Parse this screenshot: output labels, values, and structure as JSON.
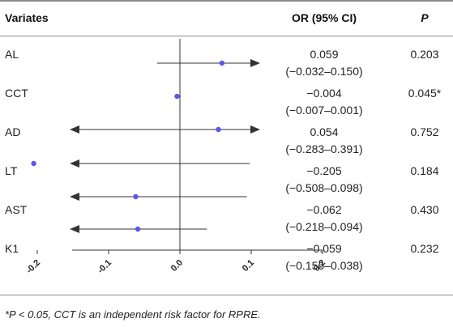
{
  "table": {
    "col_variates": "Variates",
    "col_or": "OR (95% CI)",
    "col_p": "P",
    "rows": [
      {
        "name": "AL",
        "or": "0.059",
        "ci": "(−0.032–0.150)",
        "p": "0.203"
      },
      {
        "name": "CCT",
        "or": "−0.004",
        "ci": "(−0.007–0.001)",
        "p": "0.045*"
      },
      {
        "name": "AD",
        "or": "0.054",
        "ci": "(−0.283–0.391)",
        "p": "0.752"
      },
      {
        "name": "LT",
        "or": "−0.205",
        "ci": "(−0.508–0.098)",
        "p": "0.184"
      },
      {
        "name": "AST",
        "or": "−0.062",
        "ci": "(−0.218–0.094)",
        "p": "0.430"
      },
      {
        "name": "K1",
        "or": "−0.059",
        "ci": "(−0.156–0.038)",
        "p": "0.232"
      }
    ]
  },
  "footnote": "*P < 0.05, CCT is an independent risk factor for RPRE.",
  "colors": {
    "point": "#5b57e8",
    "line": "#333333",
    "rule": "#8c8c8c"
  },
  "chart_data": {
    "type": "forest",
    "xlim": [
      -0.3,
      0.2
    ],
    "ticks": [
      -0.2,
      -0.1,
      0.0,
      0.1,
      0.2
    ],
    "tick_labels": [
      "-0.2",
      "-0.1",
      "0.0",
      "0.1",
      "0.2"
    ],
    "reference_line": 0,
    "points": [
      {
        "label": "AL",
        "estimate": 0.059,
        "lower": -0.032,
        "upper": 0.15
      },
      {
        "label": "CCT",
        "estimate": -0.004,
        "lower": -0.007,
        "upper": 0.001
      },
      {
        "label": "AD",
        "estimate": 0.054,
        "lower": -0.283,
        "upper": 0.391
      },
      {
        "label": "LT",
        "estimate": -0.205,
        "lower": -0.508,
        "upper": 0.098
      },
      {
        "label": "AST",
        "estimate": -0.062,
        "lower": -0.218,
        "upper": 0.094
      },
      {
        "label": "K1",
        "estimate": -0.059,
        "lower": -0.156,
        "upper": 0.038
      }
    ]
  }
}
